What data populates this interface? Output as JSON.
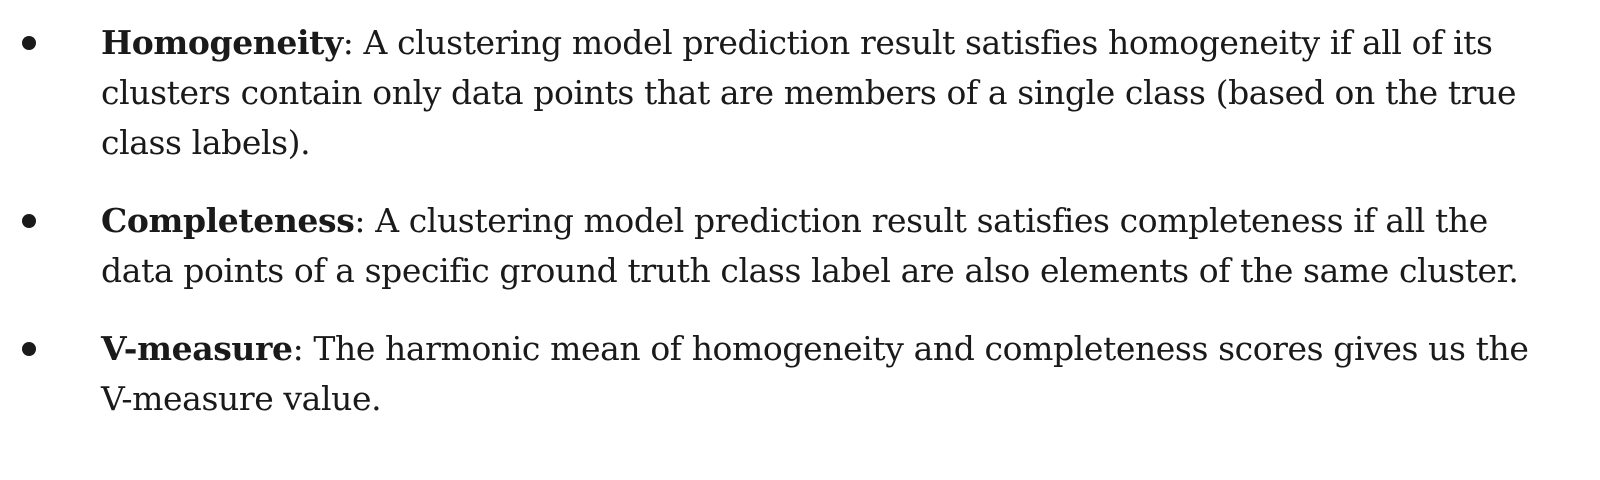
{
  "items": [
    {
      "term": "Homogeneity",
      "definition": ": A clustering model prediction result satisfies homogeneity if all of its clusters contain only data points that are members of a single class (based on the true class labels)."
    },
    {
      "term": "Completeness",
      "definition": ": A clustering model prediction result satisfies completeness if all the data points of a specific ground truth class label are also elements of the same cluster."
    },
    {
      "term": "V-measure",
      "definition": ": The harmonic mean of homogeneity and completeness scores gives us the V-measure value."
    }
  ]
}
